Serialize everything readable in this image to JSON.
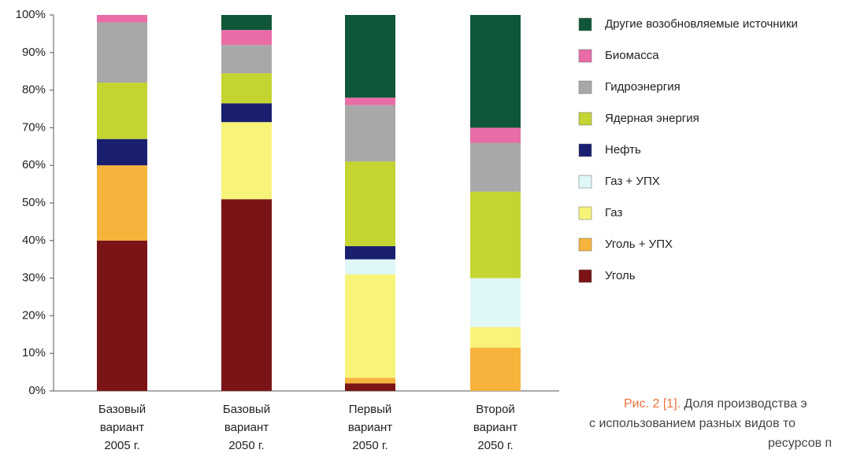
{
  "chart_data": {
    "type": "stacked_bar",
    "categories": [
      "Базовый вариант 2005 г.",
      "Базовый вариант 2050 г.",
      "Первый вариант 2050 г.",
      "Второй вариант 2050 г."
    ],
    "series": [
      {
        "name": "Уголь",
        "color": "#7b1416",
        "values": [
          40,
          51,
          2,
          0
        ]
      },
      {
        "name": "Уголь + УПХ",
        "color": "#f6b43c",
        "values": [
          20,
          0,
          1.5,
          11.5
        ]
      },
      {
        "name": "Газ",
        "color": "#f8f47a",
        "values": [
          0,
          20.5,
          27.5,
          5.5
        ]
      },
      {
        "name": "Газ + УПХ",
        "color": "#e0f7f7",
        "values": [
          0,
          0,
          4,
          13
        ]
      },
      {
        "name": "Нефть",
        "color": "#1a1f70",
        "values": [
          7,
          5,
          3.5,
          0
        ]
      },
      {
        "name": "Ядерная энергия",
        "color": "#c4d431",
        "values": [
          15,
          8,
          22.5,
          23
        ]
      },
      {
        "name": "Гидроэнергия",
        "color": "#a8a8a8",
        "values": [
          16,
          7.5,
          15,
          13
        ]
      },
      {
        "name": "Биомасса",
        "color": "#e96ca6",
        "values": [
          2,
          4,
          2,
          4
        ]
      },
      {
        "name": "Другие возобновляемые источники",
        "color": "#10573a",
        "values": [
          0,
          4,
          22,
          30
        ]
      }
    ],
    "ylim": [
      0,
      100
    ],
    "yticks": [
      {
        "value": 0,
        "label": "0%"
      },
      {
        "value": 10,
        "label": "10%"
      },
      {
        "value": 20,
        "label": "20%"
      },
      {
        "value": 30,
        "label": "30%"
      },
      {
        "value": 40,
        "label": "40%"
      },
      {
        "value": 50,
        "label": "50%"
      },
      {
        "value": 60,
        "label": "60%"
      },
      {
        "value": 70,
        "label": "70%"
      },
      {
        "value": 80,
        "label": "80%"
      },
      {
        "value": 90,
        "label": "90%"
      },
      {
        "value": 100,
        "label": "100%"
      }
    ],
    "grid": false,
    "legend": "right"
  },
  "caption": {
    "label": "Рис. 2 [1].",
    "lines": [
      "Доля производства э",
      "с использованием разных видов то",
      "ресурсов п"
    ]
  }
}
